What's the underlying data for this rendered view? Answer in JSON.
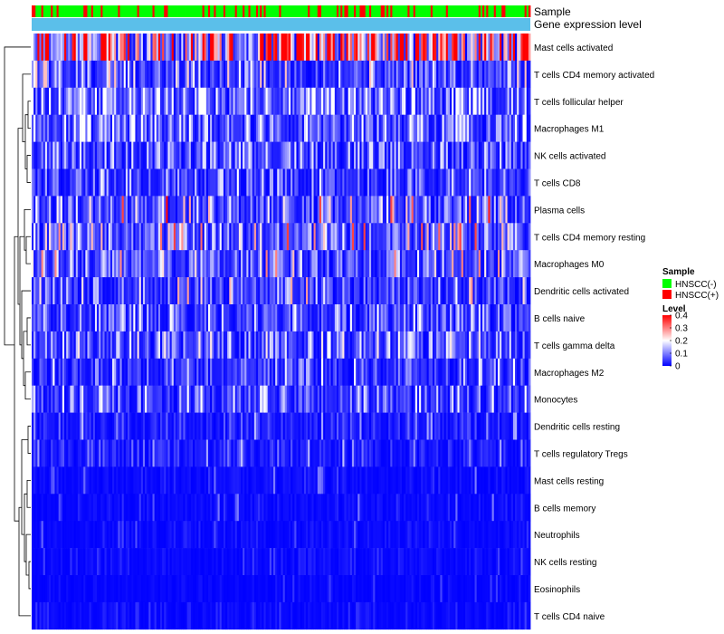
{
  "chart_data": {
    "type": "heatmap",
    "title": "",
    "annotation_labels": [
      "Sample",
      "Gene expression level"
    ],
    "rows": [
      "Mast cells activated",
      "T cells CD4 memory activated",
      "T cells follicular helper",
      "Macrophages M1",
      "NK cells activated",
      "T cells CD8",
      "Plasma cells",
      "T cells CD4 memory resting",
      "Macrophages M0",
      "Dendritic cells activated",
      "B cells naive",
      "T cells gamma delta",
      "Macrophages M2",
      "Monocytes",
      "Dendritic cells resting",
      "T cells regulatory  Tregs",
      "Mast cells resting",
      "B cells memory",
      "Neutrophils",
      "NK cells resting",
      "Eosinophils",
      "T cells CD4 naive"
    ],
    "row_mean_levels": [
      0.3,
      0.08,
      0.12,
      0.1,
      0.09,
      0.06,
      0.09,
      0.1,
      0.09,
      0.06,
      0.07,
      0.07,
      0.06,
      0.06,
      0.03,
      0.03,
      0.01,
      0.01,
      0.01,
      0.01,
      0.005,
      0.01
    ],
    "row_max_levels": [
      0.4,
      0.25,
      0.2,
      0.2,
      0.18,
      0.2,
      0.4,
      0.35,
      0.3,
      0.3,
      0.2,
      0.22,
      0.2,
      0.2,
      0.15,
      0.15,
      0.1,
      0.1,
      0.08,
      0.06,
      0.06,
      0.05
    ],
    "n_samples": 260,
    "color_scale": {
      "title": "Level",
      "ticks": [
        "0.4",
        "0.3",
        "0.2",
        "0.1",
        "0"
      ],
      "range": [
        0,
        0.4
      ],
      "colors": [
        "#0000ff",
        "#ffffff",
        "#ff0000"
      ]
    },
    "sample_legend": {
      "title": "Sample",
      "groups": [
        {
          "name": "HNSCC(-)",
          "color": "#00ff00"
        },
        {
          "name": "HNSCC(+)",
          "color": "#ff0000"
        }
      ],
      "proportion_positive": 0.22
    },
    "gene_expression_bar_color": "#5bbfea"
  }
}
